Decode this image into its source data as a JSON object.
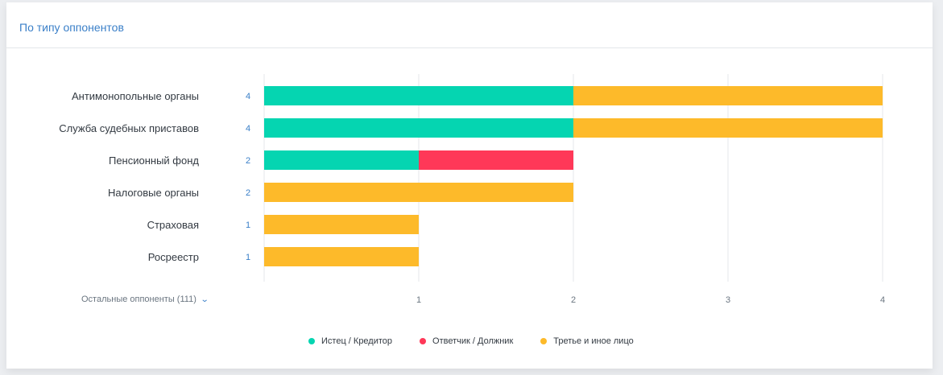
{
  "header": {
    "title": "По типу оппонентов"
  },
  "others_toggle": {
    "label": "Остальные оппоненты (111)",
    "icon": "chevron-down-icon"
  },
  "colors": {
    "plaintiff": "#05d5b1",
    "defendant": "#ff3858",
    "third": "#fdba2a",
    "count": "#3a7fc8"
  },
  "chart_data": {
    "type": "bar",
    "orientation": "horizontal",
    "stacked": true,
    "categories": [
      "Антимонопольные органы",
      "Служба судебных приставов",
      "Пенсионный фонд",
      "Налоговые органы",
      "Страховая",
      "Росреестр"
    ],
    "totals": [
      "4",
      "4",
      "2",
      "2",
      "1",
      "1"
    ],
    "series": [
      {
        "name": "Истец / Кредитор",
        "color": "#05d5b1",
        "values": [
          2,
          2,
          1,
          0,
          0,
          0
        ]
      },
      {
        "name": "Ответчик / Должник",
        "color": "#ff3858",
        "values": [
          0,
          0,
          1,
          0,
          0,
          0
        ]
      },
      {
        "name": "Третье и иное лицо",
        "color": "#fdba2a",
        "values": [
          2,
          2,
          0,
          2,
          1,
          1
        ]
      }
    ],
    "x_ticks": [
      "1",
      "2",
      "3",
      "4"
    ],
    "xlim": [
      0,
      4
    ],
    "grid": true,
    "legend": "bottom"
  }
}
